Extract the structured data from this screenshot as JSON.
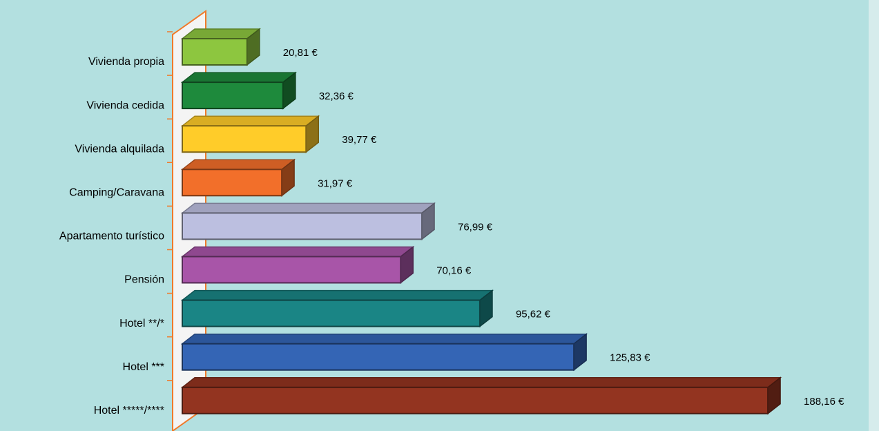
{
  "chart_data": {
    "type": "bar3d",
    "categories": [
      "Vivienda propia",
      "Vivienda cedida",
      "Vivienda alquilada",
      "Camping/Caravana",
      "Apartamento turístico",
      "Pensión",
      "Hotel **/*",
      "Hotel ***",
      "Hotel *****/****"
    ],
    "values": [
      20.81,
      32.36,
      39.77,
      31.97,
      76.99,
      70.16,
      95.62,
      125.83,
      188.16
    ],
    "value_labels": [
      "20,81 €",
      "32,36 €",
      "39,77 €",
      "31,97 €",
      "76,99 €",
      "70,16 €",
      "95,62 €",
      "125,83 €",
      "188,16 €"
    ],
    "colors": [
      "#8dc63f",
      "#1e8a3c",
      "#ffcc29",
      "#f26f2a",
      "#bcbfe0",
      "#a855a8",
      "#1a8585",
      "#3465b5",
      "#933420"
    ]
  }
}
